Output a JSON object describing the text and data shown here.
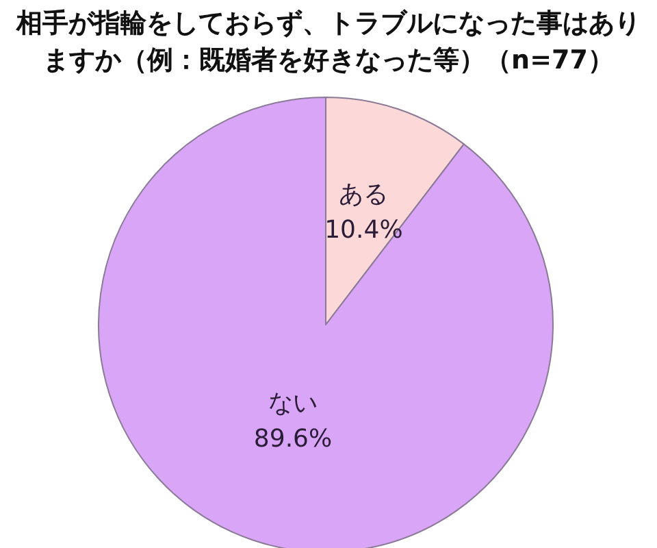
{
  "chart_data": {
    "type": "pie",
    "title": "相手が指輪をしておらず、トラブルになった事はありますか（例：既婚者を好きなった等）（n=77）",
    "categories": [
      "ある",
      "ない"
    ],
    "values": [
      10.4,
      89.6
    ],
    "colors": [
      "#fcd8d8",
      "#d9a5f7"
    ],
    "value_labels": [
      "10.4%",
      "89.6%"
    ],
    "legend": false
  }
}
